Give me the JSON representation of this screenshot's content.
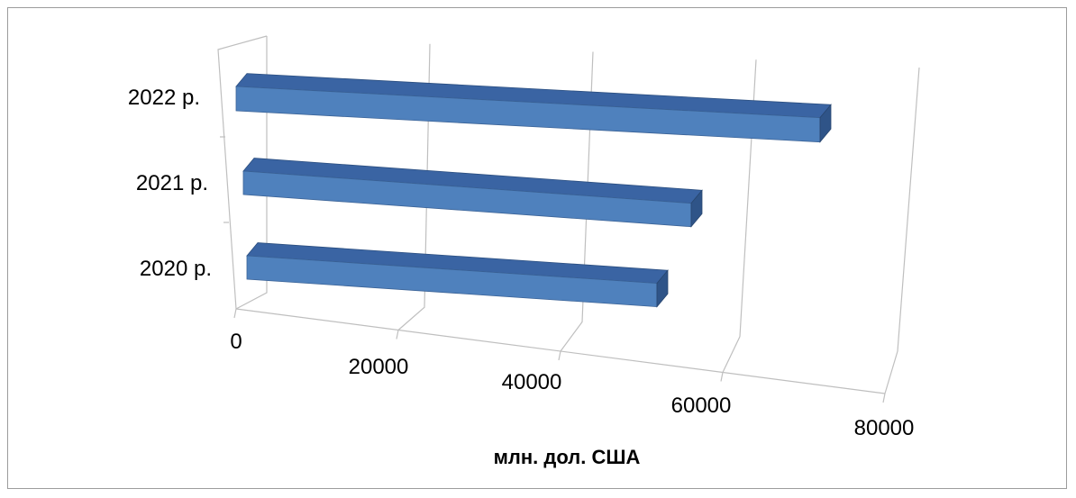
{
  "chart_data": {
    "type": "bar",
    "orientation": "horizontal",
    "style": "3d",
    "title": "",
    "xlabel": "млн. дол. США",
    "ylabel": "",
    "categories": [
      "2020 р.",
      "2021 р.",
      "2022 р."
    ],
    "values": [
      54000,
      60000,
      77000
    ],
    "xlim": [
      0,
      80000
    ],
    "xticks": [
      "0",
      "20000",
      "40000",
      "60000",
      "80000"
    ],
    "grid": true,
    "legend": "none",
    "colors": {
      "bar_front": "#4f81bd",
      "bar_top": "#3a64a3",
      "bar_side": "#2f5488",
      "grid": "#bfbfbf",
      "frame": "#9c9c9c"
    }
  }
}
